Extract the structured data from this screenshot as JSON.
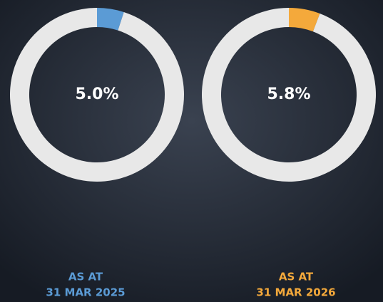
{
  "chart_data": [
    {
      "type": "donut",
      "values": [
        5.0,
        95.0
      ],
      "value_labels": [
        "5.0%",
        null
      ],
      "colors": [
        "#5b9bd5",
        "#e8e8e8"
      ],
      "label_lines": [
        "AS AT",
        "31 MAR 2025"
      ],
      "label_color": "#5b9bd5"
    },
    {
      "type": "donut",
      "values": [
        5.8,
        94.2
      ],
      "value_labels": [
        "5.8%",
        null
      ],
      "colors": [
        "#f4a93b",
        "#e8e8e8"
      ],
      "label_lines": [
        "AS AT",
        "31 MAR 2026"
      ],
      "label_color": "#f4a93b"
    }
  ]
}
